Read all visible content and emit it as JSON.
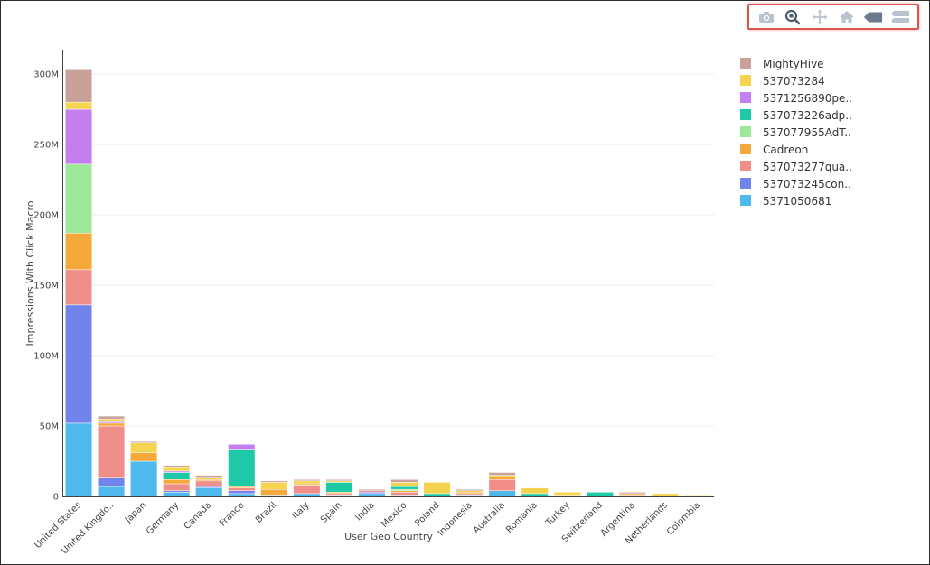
{
  "toolbar": {
    "buttons": [
      {
        "name": "camera-icon"
      },
      {
        "name": "zoom-icon"
      },
      {
        "name": "pan-icon"
      },
      {
        "name": "home-icon"
      },
      {
        "name": "hover-closest-icon"
      },
      {
        "name": "hover-compare-icon"
      }
    ]
  },
  "chart_data": {
    "type": "bar",
    "stacked": true,
    "title": "",
    "xlabel": "User Geo Country",
    "ylabel": "Impressions With Click Macro",
    "ylim": [
      0,
      320000000
    ],
    "yticks": [
      {
        "value": 0,
        "label": "0"
      },
      {
        "value": 50000000,
        "label": "50M"
      },
      {
        "value": 100000000,
        "label": "100M"
      },
      {
        "value": 150000000,
        "label": "150M"
      },
      {
        "value": 200000000,
        "label": "200M"
      },
      {
        "value": 250000000,
        "label": "250M"
      },
      {
        "value": 300000000,
        "label": "300M"
      }
    ],
    "grid": true,
    "legend_position": "right",
    "categories": [
      "United States",
      "United Kingdo..",
      "Japan",
      "Germany",
      "Canada",
      "France",
      "Brazil",
      "Italy",
      "Spain",
      "India",
      "Mexico",
      "Poland",
      "Indonesia",
      "Australia",
      "Romania",
      "Turkey",
      "Switzerland",
      "Argentina",
      "Netherlands",
      "Colombia"
    ],
    "series": [
      {
        "name": "5371050681",
        "color": "#4fb8ec",
        "values": [
          52000000,
          7000000,
          25000000,
          3000000,
          6000000,
          2000000,
          1000000,
          2000000,
          1000000,
          2000000,
          1000000,
          0,
          1000000,
          4000000,
          0,
          0,
          0,
          0,
          0,
          0
        ]
      },
      {
        "name": "537073245con..",
        "color": "#7084ec",
        "values": [
          84000000,
          6000000,
          0,
          1000000,
          1000000,
          2000000,
          0,
          0,
          0,
          1000000,
          0,
          0,
          0,
          0,
          0,
          0,
          0,
          0,
          0,
          0
        ]
      },
      {
        "name": "537073277qua..",
        "color": "#f08e8a",
        "values": [
          25000000,
          37000000,
          0,
          5000000,
          4000000,
          2000000,
          0,
          6000000,
          1000000,
          1000000,
          2000000,
          0,
          1000000,
          8000000,
          0,
          0,
          0,
          1000000,
          0,
          0
        ]
      },
      {
        "name": "Cadreon",
        "color": "#f5a93a",
        "values": [
          26000000,
          2000000,
          6000000,
          3000000,
          1000000,
          1000000,
          4000000,
          1000000,
          1000000,
          0,
          1000000,
          0,
          1000000,
          2000000,
          0,
          1000000,
          0,
          1000000,
          0,
          0
        ]
      },
      {
        "name": "537077955AdT..",
        "color": "#9ee89a",
        "values": [
          49000000,
          0,
          0,
          0,
          0,
          0,
          0,
          0,
          0,
          0,
          1000000,
          0,
          0,
          0,
          0,
          0,
          0,
          0,
          0,
          0
        ]
      },
      {
        "name": "537073226adp..",
        "color": "#1ec9a8",
        "values": [
          0,
          0,
          0,
          5000000,
          0,
          26000000,
          0,
          0,
          7000000,
          0,
          2000000,
          2000000,
          0,
          0,
          2000000,
          0,
          3000000,
          0,
          0,
          0
        ]
      },
      {
        "name": "5371256890pe..",
        "color": "#c47ef0",
        "values": [
          39000000,
          1000000,
          0,
          1000000,
          0,
          4000000,
          0,
          0,
          0,
          0,
          0,
          0,
          0,
          0,
          0,
          0,
          0,
          0,
          0,
          0
        ]
      },
      {
        "name": "537073284",
        "color": "#f4d34f",
        "values": [
          5000000,
          2000000,
          7000000,
          3000000,
          1000000,
          0,
          5000000,
          2000000,
          1000000,
          0,
          3000000,
          8000000,
          1000000,
          1000000,
          4000000,
          2000000,
          0,
          0,
          2000000,
          1000000
        ]
      },
      {
        "name": "MightyHive",
        "color": "#c9a19a",
        "values": [
          23000000,
          2000000,
          1000000,
          1000000,
          2000000,
          0,
          1000000,
          1000000,
          1000000,
          1000000,
          2000000,
          0,
          1000000,
          2000000,
          0,
          0,
          0,
          1000000,
          0,
          0
        ]
      }
    ]
  }
}
